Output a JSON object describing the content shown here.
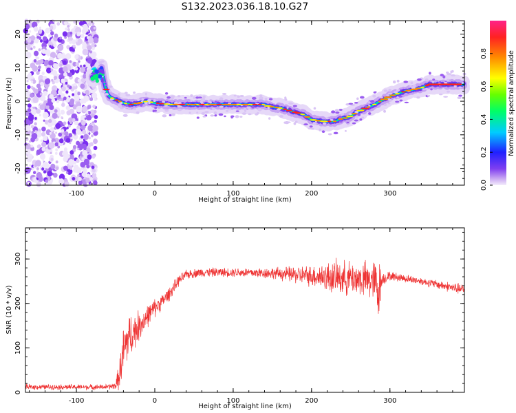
{
  "title": "S132.2023.036.18.10.G27",
  "chart_data": [
    {
      "type": "heatmap",
      "xlabel": "Height of straight line (km)",
      "ylabel": "Frequency (Hz)",
      "xlim": [
        -165,
        395
      ],
      "ylim": [
        -25,
        24
      ],
      "xticks": [
        -100,
        0,
        100,
        200,
        300
      ],
      "yticks": [
        -20,
        -10,
        0,
        10,
        20
      ],
      "colorbar": {
        "label": "Normalized spectral amplitude",
        "range": [
          0,
          1
        ],
        "ticks": [
          "0.0",
          "0.2",
          "0.4",
          "0.6",
          "0.8"
        ],
        "colormap": "rainbow (violet to red)"
      },
      "ridge": {
        "x": [
          -80,
          -72,
          -68,
          -64,
          -60,
          -55,
          -50,
          -40,
          -30,
          -20,
          -10,
          0,
          20,
          60,
          100,
          140,
          145,
          160,
          175,
          190,
          200,
          215,
          230,
          240,
          245,
          260,
          280,
          300,
          320,
          340,
          350,
          370,
          395
        ],
        "y": [
          7,
          8,
          10,
          5,
          2,
          1,
          0.5,
          -0.5,
          -1,
          -0.5,
          0,
          -0.5,
          -1,
          -1,
          -1,
          -1,
          -1.5,
          -2,
          -3,
          -4,
          -5.5,
          -6,
          -6,
          -5,
          -5,
          -3,
          -1,
          1.5,
          3,
          4,
          5,
          5,
          5
        ]
      },
      "noise_region_x": [
        -165,
        -75
      ]
    },
    {
      "type": "line",
      "xlabel": "Height of straight line (km)",
      "ylabel": "SNR (10 * v/v)",
      "xlim": [
        -165,
        395
      ],
      "ylim": [
        0,
        370
      ],
      "xticks": [
        -100,
        0,
        100,
        200,
        300
      ],
      "yticks": [
        0,
        100,
        200,
        300
      ],
      "color": "#ee3333",
      "envelope": {
        "x": [
          -165,
          -60,
          -50,
          -45,
          -40,
          -35,
          -30,
          -20,
          -10,
          0,
          10,
          20,
          30,
          40,
          60,
          100,
          150,
          200,
          230,
          260,
          280,
          285,
          290,
          300,
          340,
          395
        ],
        "mean": [
          12,
          12,
          15,
          40,
          90,
          120,
          130,
          150,
          170,
          190,
          205,
          225,
          250,
          265,
          270,
          270,
          268,
          262,
          258,
          255,
          250,
          230,
          255,
          262,
          250,
          230
        ],
        "spread": [
          7,
          7,
          10,
          40,
          70,
          70,
          55,
          40,
          30,
          25,
          20,
          18,
          15,
          12,
          12,
          12,
          15,
          28,
          45,
          45,
          55,
          90,
          18,
          12,
          10,
          15
        ]
      }
    }
  ]
}
